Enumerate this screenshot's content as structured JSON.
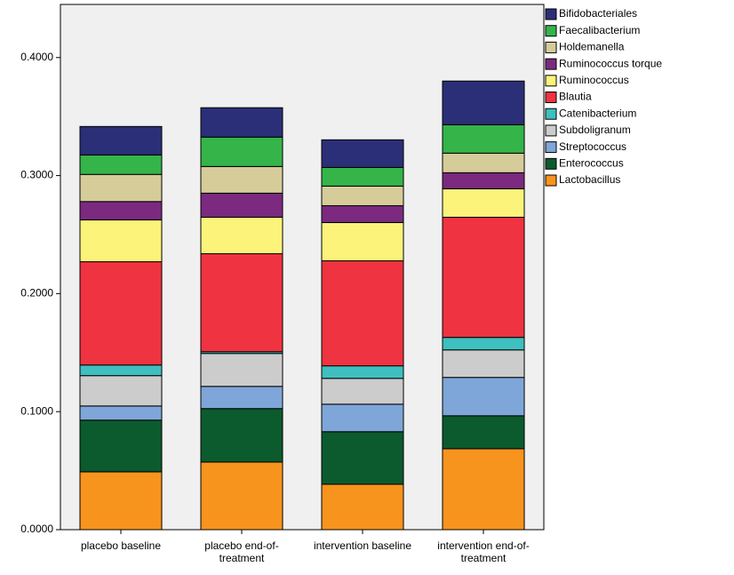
{
  "chart_data": {
    "type": "stacked_bar",
    "categories": [
      "placebo baseline",
      "placebo end-of-treatment",
      "intervention baseline",
      "intervention end-of-treatment"
    ],
    "ylim": [
      0,
      0.445
    ],
    "yticks": [
      {
        "value": 0,
        "label": "0.0000"
      },
      {
        "value": 0.1,
        "label": "0.1000"
      },
      {
        "value": 0.2,
        "label": "0.2000"
      },
      {
        "value": 0.3,
        "label": "0.3000"
      },
      {
        "value": 0.4,
        "label": "0.4000"
      }
    ],
    "legend_position": "right",
    "series": [
      {
        "name": "Lactobacillus",
        "color": "#f7941d",
        "values": [
          0.049,
          0.0573,
          0.0385,
          0.0686
        ]
      },
      {
        "name": "Enterococcus",
        "color": "#0b5b2e",
        "values": [
          0.0438,
          0.0453,
          0.0445,
          0.0279
        ]
      },
      {
        "name": "Streptococcus",
        "color": "#7ea6d8",
        "values": [
          0.012,
          0.0188,
          0.0233,
          0.0325
        ]
      },
      {
        "name": "Subdoligranum",
        "color": "#cccccc",
        "values": [
          0.0257,
          0.0279,
          0.0219,
          0.0233
        ]
      },
      {
        "name": "Catenibacterium",
        "color": "#3fbfbf",
        "values": [
          0.009,
          0.0015,
          0.0106,
          0.0106
        ]
      },
      {
        "name": "Blautia",
        "color": "#ef3340",
        "values": [
          0.0875,
          0.083,
          0.089,
          0.1018
        ]
      },
      {
        "name": "Ruminococcus",
        "color": "#fbf37a",
        "values": [
          0.0355,
          0.0309,
          0.0324,
          0.0241
        ]
      },
      {
        "name": "Ruminococcus torque",
        "color": "#7b2a7f",
        "values": [
          0.0155,
          0.0204,
          0.0143,
          0.0136
        ]
      },
      {
        "name": "Holdemanella",
        "color": "#d6cc9a",
        "values": [
          0.023,
          0.0226,
          0.0166,
          0.0166
        ]
      },
      {
        "name": "Faecalibacterium",
        "color": "#35b44a",
        "values": [
          0.0165,
          0.0249,
          0.0158,
          0.0241
        ]
      },
      {
        "name": "Bifidobacteriales",
        "color": "#2b2f78",
        "values": [
          0.0241,
          0.0249,
          0.0234,
          0.037
        ]
      }
    ]
  }
}
